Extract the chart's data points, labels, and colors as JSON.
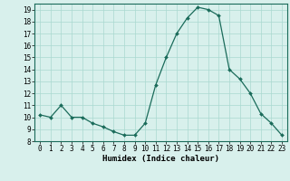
{
  "x": [
    0,
    1,
    2,
    3,
    4,
    5,
    6,
    7,
    8,
    9,
    10,
    11,
    12,
    13,
    14,
    15,
    16,
    17,
    18,
    19,
    20,
    21,
    22,
    23
  ],
  "y": [
    10.2,
    10.0,
    11.0,
    10.0,
    10.0,
    9.5,
    9.2,
    8.8,
    8.5,
    8.5,
    9.5,
    12.7,
    15.0,
    17.0,
    18.3,
    19.2,
    19.0,
    18.5,
    14.0,
    13.2,
    12.0,
    10.3,
    9.5,
    8.5
  ],
  "line_color": "#1a6b5a",
  "bg_color": "#d8f0ec",
  "grid_color": "#aad8d0",
  "xlabel": "Humidex (Indice chaleur)",
  "xlim": [
    -0.5,
    23.5
  ],
  "ylim": [
    8,
    19.5
  ],
  "yticks": [
    8,
    9,
    10,
    11,
    12,
    13,
    14,
    15,
    16,
    17,
    18,
    19
  ],
  "xticks": [
    0,
    1,
    2,
    3,
    4,
    5,
    6,
    7,
    8,
    9,
    10,
    11,
    12,
    13,
    14,
    15,
    16,
    17,
    18,
    19,
    20,
    21,
    22,
    23
  ],
  "label_fontsize": 6.5,
  "tick_fontsize": 5.5,
  "marker_size": 2.0,
  "line_width": 0.9
}
